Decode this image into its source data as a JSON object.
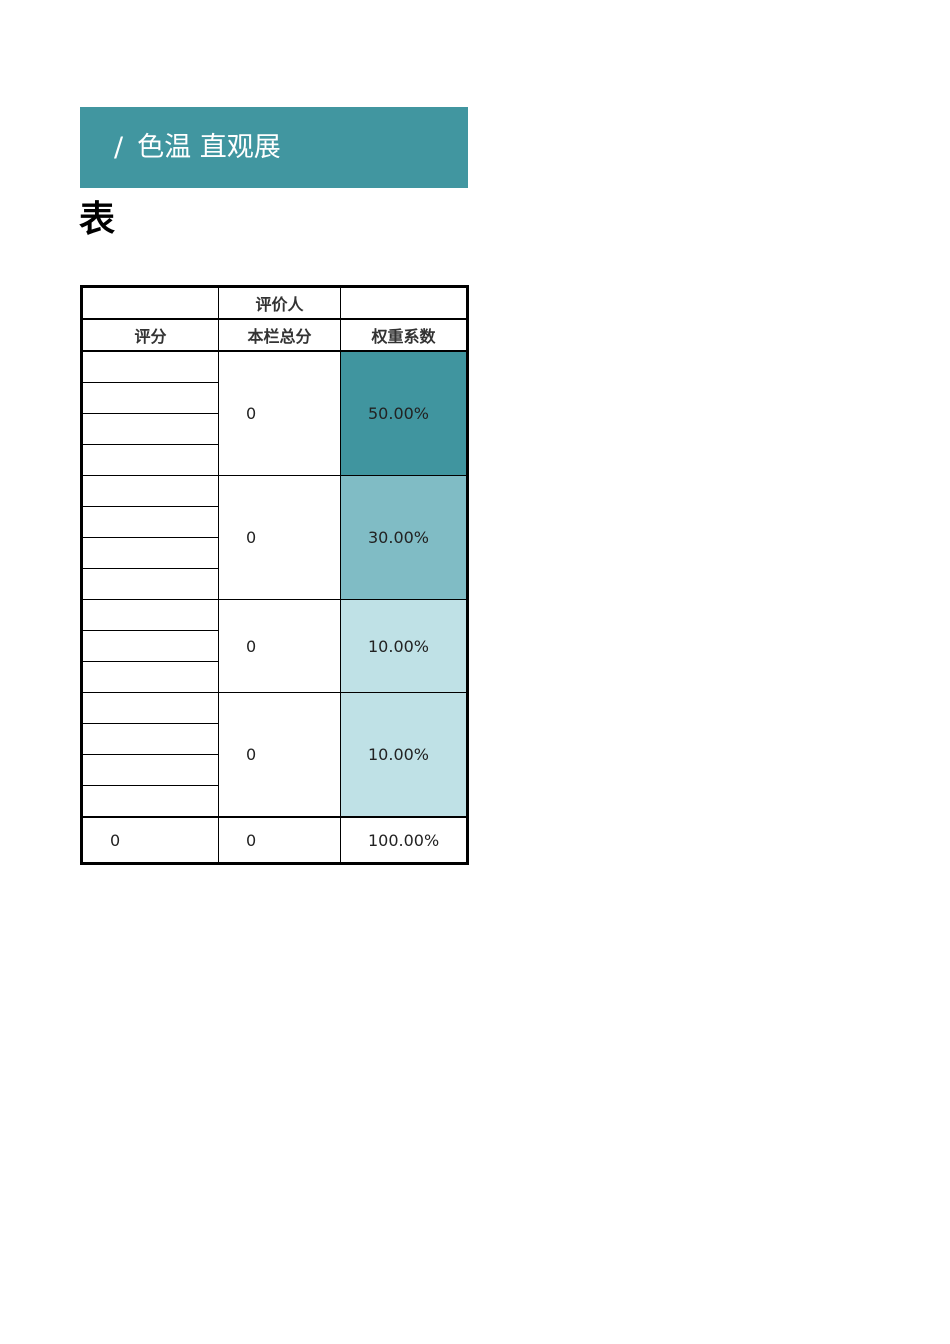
{
  "banner": {
    "slash": "/",
    "title": "色温 直观展"
  },
  "title_continuation": "表",
  "table": {
    "header_row1": [
      "",
      "评价人",
      ""
    ],
    "header_row2": [
      "评分",
      "本栏总分",
      "权重系数"
    ],
    "groups": [
      {
        "total": "0",
        "weight": "50.00%",
        "color": "#40959f"
      },
      {
        "total": "0",
        "weight": "30.00%",
        "color": "#80bcc5"
      },
      {
        "total": "0",
        "weight": "10.00%",
        "color": "#bfe1e6"
      },
      {
        "total": "0",
        "weight": "10.00%",
        "color": "#bfe1e6"
      }
    ],
    "total_row": [
      "0",
      "0",
      "100.00%"
    ]
  }
}
